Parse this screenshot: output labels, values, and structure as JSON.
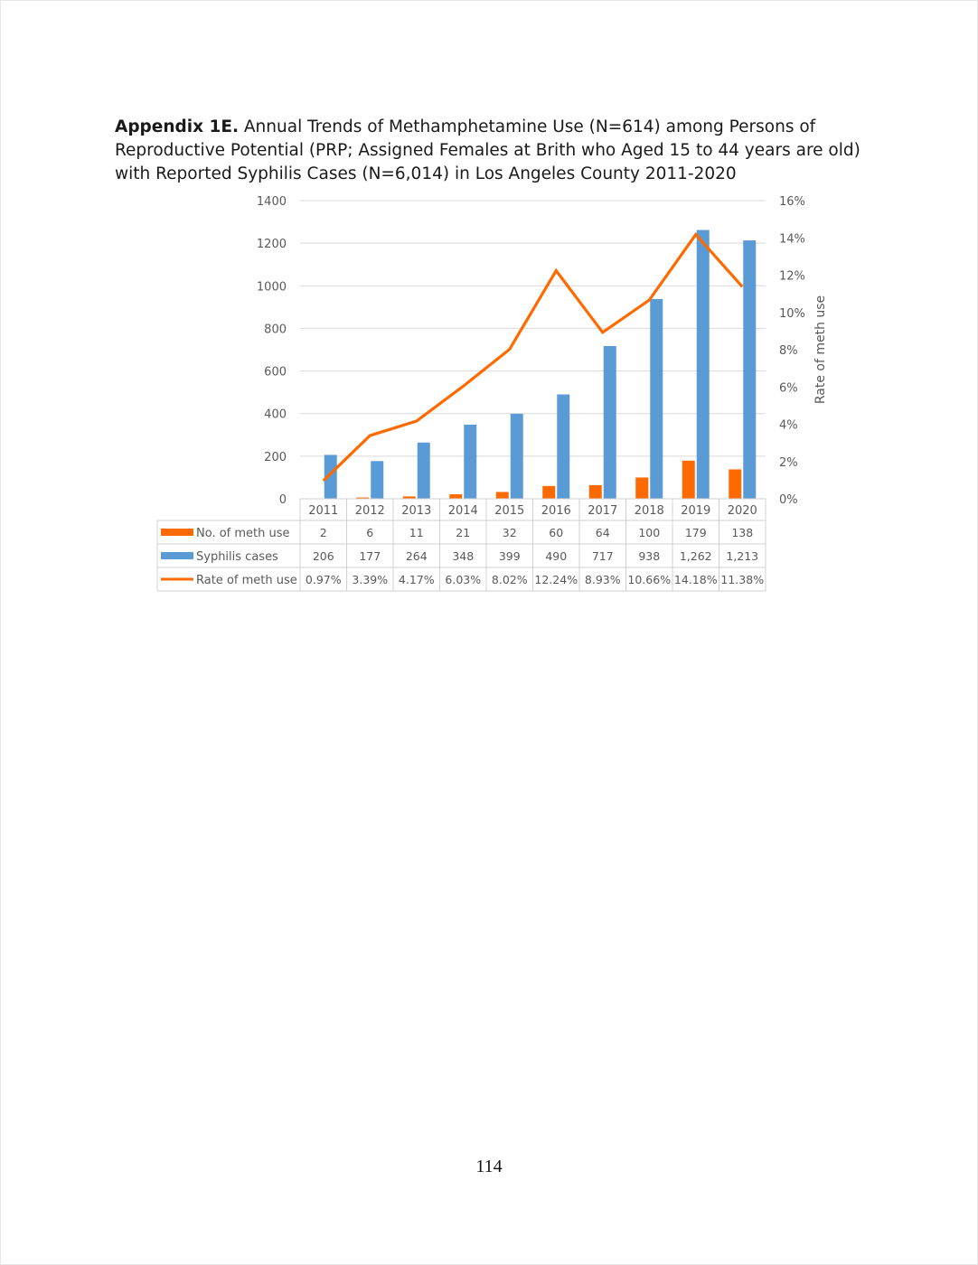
{
  "caption": {
    "label": "Appendix 1E.",
    "text": "Annual Trends of Methamphetamine Use (N=614) among Persons of Reproductive Potential (PRP; Assigned Females at Brith who Aged 15 to 44 years are old) with Reported Syphilis Cases (N=6,014) in Los Angeles County 2011-2020"
  },
  "page_number": "114",
  "colors": {
    "meth": "#ff6a00",
    "syphilis": "#5b9bd5",
    "rate": "#ff6a00"
  },
  "chart_data": {
    "type": "bar",
    "title": "",
    "categories": [
      "2011",
      "2012",
      "2013",
      "2014",
      "2015",
      "2016",
      "2017",
      "2018",
      "2019",
      "2020"
    ],
    "series": [
      {
        "name": "No. of meth use",
        "type": "bar",
        "axis": "left",
        "color": "#ff6a00",
        "values": [
          2,
          6,
          11,
          21,
          32,
          60,
          64,
          100,
          179,
          138
        ],
        "labels": [
          "2",
          "6",
          "11",
          "21",
          "32",
          "60",
          "64",
          "100",
          "179",
          "138"
        ]
      },
      {
        "name": "Syphilis cases",
        "type": "bar",
        "axis": "left",
        "color": "#5b9bd5",
        "values": [
          206,
          177,
          264,
          348,
          399,
          490,
          717,
          938,
          1262,
          1213
        ],
        "labels": [
          "206",
          "177",
          "264",
          "348",
          "399",
          "490",
          "717",
          "938",
          "1,262",
          "1,213"
        ]
      },
      {
        "name": "Rate of meth use",
        "type": "line",
        "axis": "right",
        "color": "#ff6a00",
        "values": [
          0.97,
          3.39,
          4.17,
          6.03,
          8.02,
          12.24,
          8.93,
          10.66,
          14.18,
          11.38
        ],
        "labels": [
          "0.97%",
          "3.39%",
          "4.17%",
          "6.03%",
          "8.02%",
          "12.24%",
          "8.93%",
          "10.66%",
          "14.18%",
          "11.38%"
        ]
      }
    ],
    "ylabel": "",
    "ylim": [
      0,
      1400
    ],
    "yticks": [
      "0",
      "200",
      "400",
      "600",
      "800",
      "1000",
      "1200",
      "1400"
    ],
    "y2label": "Rate of meth use",
    "y2lim": [
      0,
      16
    ],
    "y2ticks": [
      "0%",
      "2%",
      "4%",
      "6%",
      "8%",
      "10%",
      "12%",
      "14%",
      "16%"
    ],
    "grid": true,
    "legend": "data-table"
  }
}
